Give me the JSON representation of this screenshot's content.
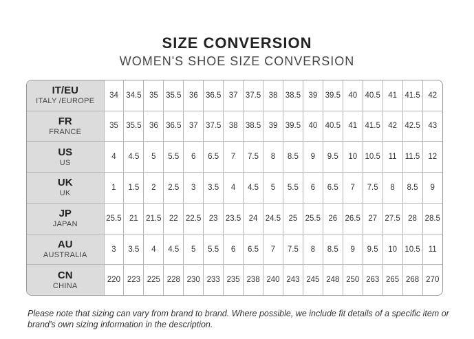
{
  "title": "SIZE CONVERSION",
  "subtitle": "WOMEN'S SHOE SIZE CONVERSION",
  "rows": [
    {
      "code": "IT/EU",
      "name": "ITALY /EUROPE",
      "values": [
        "34",
        "34.5",
        "35",
        "35.5",
        "36",
        "36.5",
        "37",
        "37.5",
        "38",
        "38.5",
        "39",
        "39.5",
        "40",
        "40.5",
        "41",
        "41.5",
        "42"
      ]
    },
    {
      "code": "FR",
      "name": "FRANCE",
      "values": [
        "35",
        "35.5",
        "36",
        "36.5",
        "37",
        "37.5",
        "38",
        "38.5",
        "39",
        "39.5",
        "40",
        "40.5",
        "41",
        "41.5",
        "42",
        "42.5",
        "43"
      ]
    },
    {
      "code": "US",
      "name": "US",
      "values": [
        "4",
        "4.5",
        "5",
        "5.5",
        "6",
        "6.5",
        "7",
        "7.5",
        "8",
        "8.5",
        "9",
        "9.5",
        "10",
        "10.5",
        "11",
        "11.5",
        "12"
      ]
    },
    {
      "code": "UK",
      "name": "UK",
      "values": [
        "1",
        "1.5",
        "2",
        "2.5",
        "3",
        "3.5",
        "4",
        "4.5",
        "5",
        "5.5",
        "6",
        "6.5",
        "7",
        "7.5",
        "8",
        "8.5",
        "9"
      ]
    },
    {
      "code": "JP",
      "name": "JAPAN",
      "values": [
        "25.5",
        "21",
        "21.5",
        "22",
        "22.5",
        "23",
        "23.5",
        "24",
        "24.5",
        "25",
        "25.5",
        "26",
        "26.5",
        "27",
        "27.5",
        "28",
        "28.5"
      ]
    },
    {
      "code": "AU",
      "name": "AUSTRALIA",
      "values": [
        "3",
        "3.5",
        "4",
        "4.5",
        "5",
        "5.5",
        "6",
        "6.5",
        "7",
        "7.5",
        "8",
        "8.5",
        "9",
        "9.5",
        "10",
        "10.5",
        "11"
      ]
    },
    {
      "code": "CN",
      "name": "CHINA",
      "values": [
        "220",
        "223",
        "225",
        "228",
        "230",
        "233",
        "235",
        "238",
        "240",
        "243",
        "245",
        "248",
        "250",
        "263",
        "265",
        "268",
        "270"
      ]
    }
  ],
  "note": "Please note that sizing can vary from brand to brand. Where possible, we include fit details of a specific item or brand’s own sizing information in the description."
}
